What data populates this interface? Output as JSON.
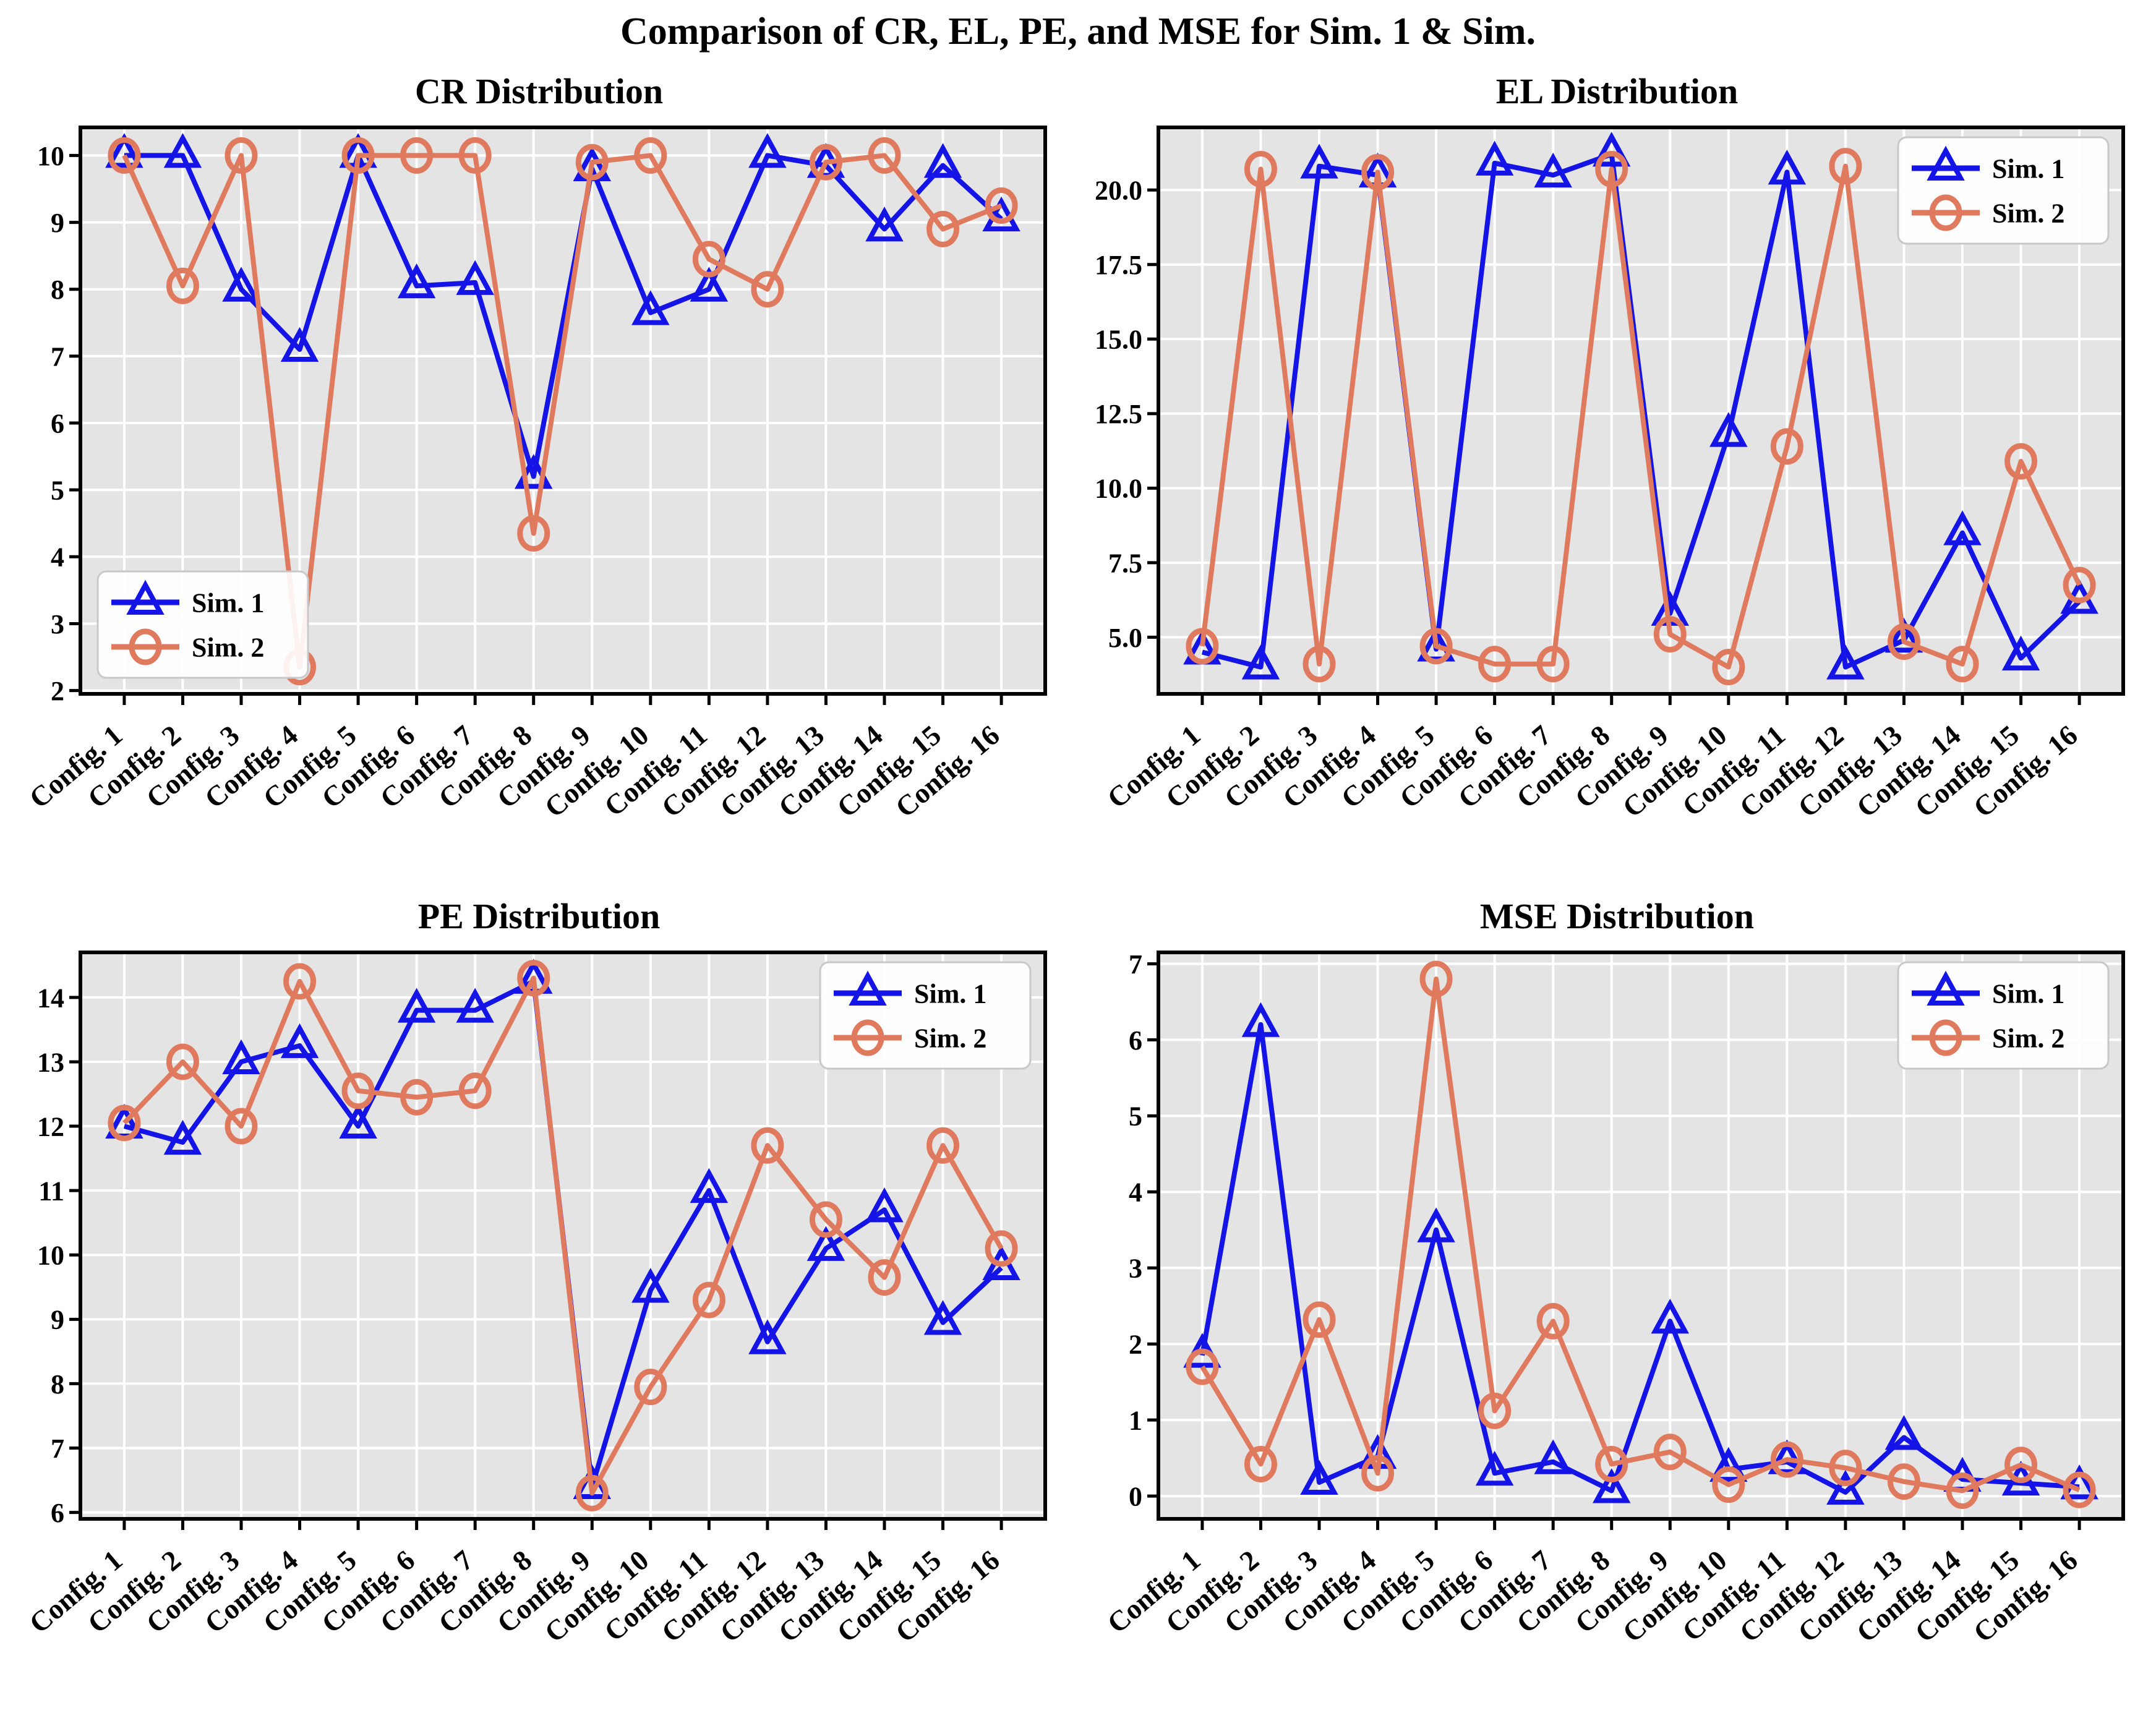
{
  "figure_title": "Comparison of CR, EL, PE, and MSE for Sim. 1 & Sim.",
  "colors": {
    "sim1": "#1414E6",
    "sim2": "#E07A5E",
    "plot_background": "#E4E4E4",
    "gridline": "#FFFFFF",
    "axes_frame": "#000000",
    "legend_background": "#FFFFFF",
    "legend_border": "#C8C8C8"
  },
  "legend": {
    "sim1_label": "Sim. 1",
    "sim2_label": "Sim. 2"
  },
  "chart_data": [
    {
      "type": "line",
      "title": "CR Distribution",
      "xlabel": "",
      "ylabel": "",
      "grid": true,
      "legend_position": "lower-left",
      "ylim": [
        1.95,
        10.42
      ],
      "yticks": [
        2,
        3,
        4,
        5,
        6,
        7,
        8,
        9,
        10
      ],
      "ytick_labels": [
        "2",
        "3",
        "4",
        "5",
        "6",
        "7",
        "8",
        "9",
        "10"
      ],
      "categories": [
        "Config. 1",
        "Config. 2",
        "Config. 3",
        "Config. 4",
        "Config. 5",
        "Config. 6",
        "Config. 7",
        "Config. 8",
        "Config. 9",
        "Config. 10",
        "Config. 11",
        "Config. 12",
        "Config. 13",
        "Config. 14",
        "Config. 15",
        "Config. 16"
      ],
      "series": [
        {
          "name": "Sim. 1",
          "marker": "triangle",
          "color": "#1414E6",
          "values": [
            10.0,
            10.0,
            8.0,
            7.1,
            10.0,
            8.05,
            8.1,
            5.2,
            9.8,
            7.65,
            8.0,
            10.0,
            9.85,
            8.9,
            9.85,
            9.05
          ]
        },
        {
          "name": "Sim. 2",
          "marker": "circle",
          "color": "#E07A5E",
          "values": [
            10.0,
            8.05,
            10.0,
            2.35,
            10.0,
            10.0,
            10.0,
            4.35,
            9.9,
            10.0,
            8.45,
            8.0,
            9.9,
            10.0,
            8.9,
            9.25
          ]
        }
      ]
    },
    {
      "type": "line",
      "title": "EL Distribution",
      "xlabel": "",
      "ylabel": "",
      "grid": true,
      "legend_position": "upper-right",
      "ylim": [
        3.1,
        22.1
      ],
      "yticks": [
        5.0,
        7.5,
        10.0,
        12.5,
        15.0,
        17.5,
        20.0
      ],
      "ytick_labels": [
        "5.0",
        "7.5",
        "10.0",
        "12.5",
        "15.0",
        "17.5",
        "20.0"
      ],
      "categories": [
        "Config. 1",
        "Config. 2",
        "Config. 3",
        "Config. 4",
        "Config. 5",
        "Config. 6",
        "Config. 7",
        "Config. 8",
        "Config. 9",
        "Config. 10",
        "Config. 11",
        "Config. 12",
        "Config. 13",
        "Config. 14",
        "Config. 15",
        "Config. 16"
      ],
      "series": [
        {
          "name": "Sim. 1",
          "marker": "triangle",
          "color": "#1414E6",
          "values": [
            4.5,
            4.0,
            20.8,
            20.5,
            4.6,
            20.9,
            20.5,
            21.2,
            5.8,
            11.8,
            20.6,
            4.0,
            4.9,
            8.5,
            4.3,
            6.2
          ]
        },
        {
          "name": "Sim. 2",
          "marker": "circle",
          "color": "#E07A5E",
          "values": [
            4.7,
            20.7,
            4.1,
            20.6,
            4.7,
            4.1,
            4.1,
            20.7,
            5.1,
            4.0,
            11.4,
            20.8,
            4.85,
            4.1,
            10.9,
            6.75
          ]
        }
      ]
    },
    {
      "type": "line",
      "title": "PE Distribution",
      "xlabel": "",
      "ylabel": "",
      "grid": true,
      "legend_position": "upper-right",
      "ylim": [
        5.9,
        14.7
      ],
      "yticks": [
        6,
        7,
        8,
        9,
        10,
        11,
        12,
        13,
        14
      ],
      "ytick_labels": [
        "6",
        "7",
        "8",
        "9",
        "10",
        "11",
        "12",
        "13",
        "14"
      ],
      "categories": [
        "Config. 1",
        "Config. 2",
        "Config. 3",
        "Config. 4",
        "Config. 5",
        "Config. 6",
        "Config. 7",
        "Config. 8",
        "Config. 9",
        "Config. 10",
        "Config. 11",
        "Config. 12",
        "Config. 13",
        "Config. 14",
        "Config. 15",
        "Config. 16"
      ],
      "series": [
        {
          "name": "Sim. 1",
          "marker": "triangle",
          "color": "#1414E6",
          "values": [
            12.0,
            11.75,
            13.0,
            13.25,
            12.0,
            13.8,
            13.8,
            14.25,
            6.4,
            9.45,
            11.0,
            8.65,
            10.1,
            10.7,
            8.95,
            9.8
          ]
        },
        {
          "name": "Sim. 2",
          "marker": "circle",
          "color": "#E07A5E",
          "values": [
            12.05,
            13.0,
            12.0,
            14.25,
            12.55,
            12.45,
            12.55,
            14.3,
            6.3,
            7.95,
            9.3,
            11.7,
            10.55,
            9.65,
            11.7,
            10.1
          ]
        }
      ]
    },
    {
      "type": "line",
      "title": "MSE Distribution",
      "xlabel": "",
      "ylabel": "",
      "grid": true,
      "legend_position": "upper-right",
      "ylim": [
        -0.3,
        7.15
      ],
      "yticks": [
        0,
        1,
        2,
        3,
        4,
        5,
        6,
        7
      ],
      "ytick_labels": [
        "0",
        "1",
        "2",
        "3",
        "4",
        "5",
        "6",
        "7"
      ],
      "categories": [
        "Config. 1",
        "Config. 2",
        "Config. 3",
        "Config. 4",
        "Config. 5",
        "Config. 6",
        "Config. 7",
        "Config. 8",
        "Config. 9",
        "Config. 10",
        "Config. 11",
        "Config. 12",
        "Config. 13",
        "Config. 14",
        "Config. 15",
        "Config. 16"
      ],
      "series": [
        {
          "name": "Sim. 1",
          "marker": "triangle",
          "color": "#1414E6",
          "values": [
            1.85,
            6.2,
            0.18,
            0.52,
            3.5,
            0.3,
            0.45,
            0.07,
            2.3,
            0.35,
            0.45,
            0.05,
            0.77,
            0.22,
            0.17,
            0.12
          ]
        },
        {
          "name": "Sim. 2",
          "marker": "circle",
          "color": "#E07A5E",
          "values": [
            1.7,
            0.42,
            2.32,
            0.3,
            6.8,
            1.12,
            2.3,
            0.42,
            0.58,
            0.15,
            0.48,
            0.37,
            0.19,
            0.07,
            0.41,
            0.08
          ]
        }
      ]
    }
  ]
}
